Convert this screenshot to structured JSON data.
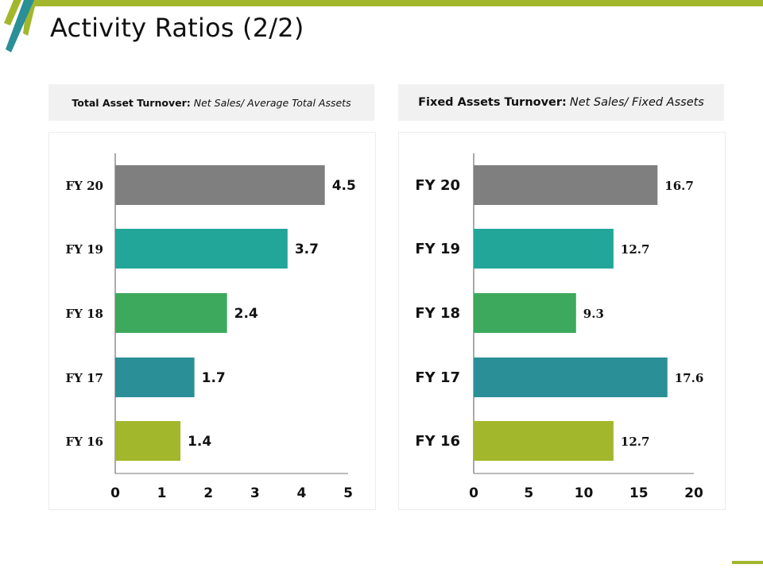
{
  "slide": {
    "title": "Activity Ratios (2/2)",
    "accent_colors": {
      "lime": "#a3b72c",
      "teal": "#2a8f97"
    }
  },
  "panels": [
    {
      "caption_bold": "Total Asset Turnover:",
      "caption_italic": "Net Sales/ Average Total Assets"
    },
    {
      "caption_bold": "Fixed Assets Turnover:",
      "caption_italic": "Net Sales/ Fixed Assets"
    }
  ],
  "chart_data": [
    {
      "type": "bar",
      "orientation": "horizontal",
      "title": "Total Asset Turnover",
      "categories": [
        "FY 20",
        "FY 19",
        "FY 18",
        "FY 17",
        "FY 16"
      ],
      "values": [
        4.5,
        3.7,
        2.4,
        1.7,
        1.4
      ],
      "data_labels": [
        "4.5",
        "3.7",
        "2.4",
        "1.7",
        "1.4"
      ],
      "colors": [
        "#7f7f7f",
        "#22a699",
        "#3ca95c",
        "#2a8f97",
        "#a3b72c"
      ],
      "xlim": [
        0,
        5
      ],
      "xticks": [
        "0",
        "1",
        "2",
        "3",
        "4",
        "5"
      ],
      "xlabel": "",
      "ylabel": "",
      "grid": false,
      "legend": "none"
    },
    {
      "type": "bar",
      "orientation": "horizontal",
      "title": "Fixed Assets Turnover",
      "categories": [
        "FY 20",
        "FY 19",
        "FY 18",
        "FY 17",
        "FY 16"
      ],
      "values": [
        16.7,
        12.7,
        9.3,
        17.6,
        12.7
      ],
      "data_labels": [
        "16.7",
        "12.7",
        "9.3",
        "17.6",
        "12.7"
      ],
      "colors": [
        "#7f7f7f",
        "#22a699",
        "#3ca95c",
        "#2a8f97",
        "#a3b72c"
      ],
      "xlim": [
        0,
        20
      ],
      "xticks": [
        "0",
        "5",
        "10",
        "15",
        "20"
      ],
      "xlabel": "",
      "ylabel": "",
      "grid": false,
      "legend": "none"
    }
  ]
}
